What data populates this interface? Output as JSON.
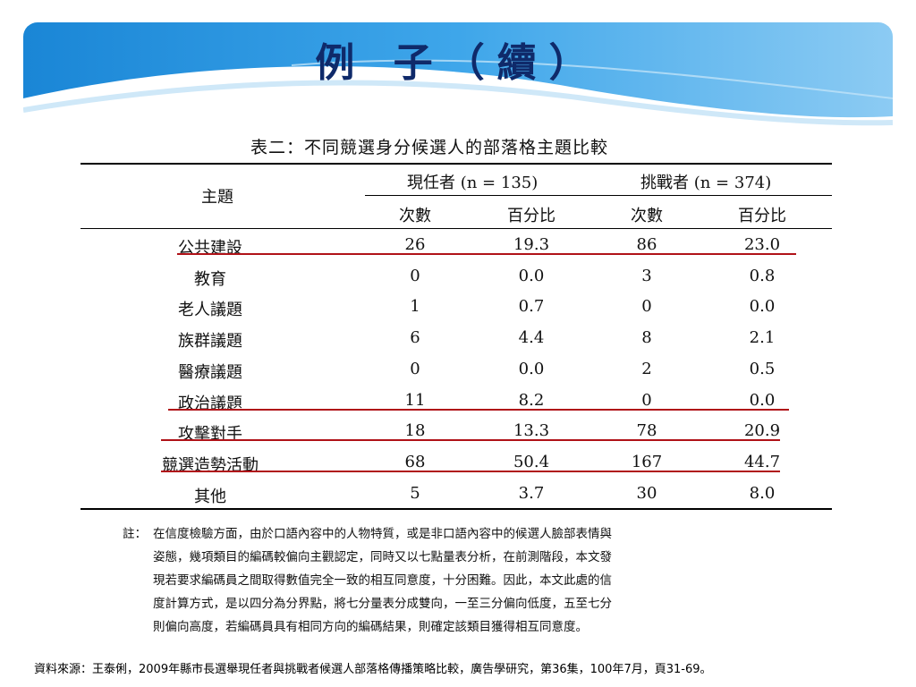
{
  "slide": {
    "title": "例 子（續）"
  },
  "table": {
    "caption": "表二：不同競選身分候選人的部落格主題比較",
    "topic_header": "主題",
    "groups": [
      "現任者 (n = 135)",
      "挑戰者 (n = 374)"
    ],
    "subheaders": [
      "次數",
      "百分比",
      "次數",
      "百分比"
    ],
    "rows": [
      {
        "topic": "公共建設",
        "v1": "26",
        "p1": "19.3",
        "v2": "86",
        "p2": "23.0"
      },
      {
        "topic": "教育",
        "v1": "0",
        "p1": "0.0",
        "v2": "3",
        "p2": "0.8"
      },
      {
        "topic": "老人議題",
        "v1": "1",
        "p1": "0.7",
        "v2": "0",
        "p2": "0.0"
      },
      {
        "topic": "族群議題",
        "v1": "6",
        "p1": "4.4",
        "v2": "8",
        "p2": "2.1"
      },
      {
        "topic": "醫療議題",
        "v1": "0",
        "p1": "0.0",
        "v2": "2",
        "p2": "0.5"
      },
      {
        "topic": "政治議題",
        "v1": "11",
        "p1": "8.2",
        "v2": "0",
        "p2": "0.0"
      },
      {
        "topic": "攻擊對手",
        "v1": "18",
        "p1": "13.3",
        "v2": "78",
        "p2": "20.9"
      },
      {
        "topic": "競選造勢活動",
        "v1": "68",
        "p1": "50.4",
        "v2": "167",
        "p2": "44.7"
      },
      {
        "topic": "其他",
        "v1": "5",
        "p1": "3.7",
        "v2": "30",
        "p2": "8.0"
      }
    ],
    "underline_color": "#b01218"
  },
  "note": {
    "label": "註：",
    "lines": [
      "在信度檢驗方面，由於口語內容中的人物特質，或是非口語內容中的候選人臉部表情與",
      "姿態，幾項類目的編碼較偏向主觀認定，同時又以七點量表分析，在前測階段，本文發",
      "現若要求編碼員之間取得數值完全一致的相互同意度，十分困難。因此，本文此處的信",
      "度計算方式，是以四分為分界點，將七分量表分成雙向，一至三分偏向低度，五至七分",
      "則偏向高度，若編碼員具有相同方向的編碼結果，則確定該類目獲得相互同意度。"
    ]
  },
  "source": "資料來源：王泰俐，2009年縣市長選舉現任者與挑戰者候選人部落格傳播策略比較，廣告學研究，第36集，100年7月，頁31-69。"
}
